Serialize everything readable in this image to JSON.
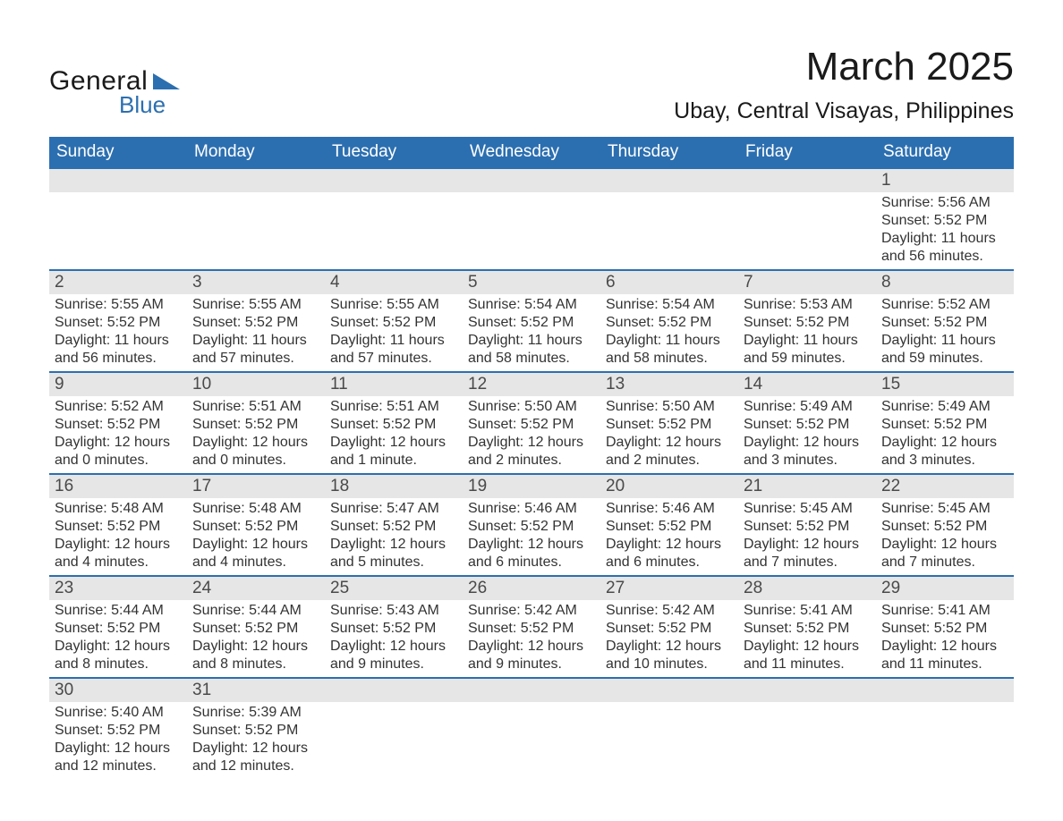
{
  "logo": {
    "text_general": "General",
    "text_blue": "Blue",
    "triangle_color": "#2c6fb0"
  },
  "title": {
    "month": "March 2025",
    "location": "Ubay, Central Visayas, Philippines"
  },
  "colors": {
    "header_bg": "#2c6fb0",
    "header_text": "#ffffff",
    "daynum_bg": "#e6e6e6",
    "divider": "#2c6fb0",
    "body_text": "#333333",
    "page_bg": "#ffffff"
  },
  "weekdays": [
    "Sunday",
    "Monday",
    "Tuesday",
    "Wednesday",
    "Thursday",
    "Friday",
    "Saturday"
  ],
  "weeks": [
    [
      null,
      null,
      null,
      null,
      null,
      null,
      {
        "day": "1",
        "sunrise": "Sunrise: 5:56 AM",
        "sunset": "Sunset: 5:52 PM",
        "daylight1": "Daylight: 11 hours",
        "daylight2": "and 56 minutes."
      }
    ],
    [
      {
        "day": "2",
        "sunrise": "Sunrise: 5:55 AM",
        "sunset": "Sunset: 5:52 PM",
        "daylight1": "Daylight: 11 hours",
        "daylight2": "and 56 minutes."
      },
      {
        "day": "3",
        "sunrise": "Sunrise: 5:55 AM",
        "sunset": "Sunset: 5:52 PM",
        "daylight1": "Daylight: 11 hours",
        "daylight2": "and 57 minutes."
      },
      {
        "day": "4",
        "sunrise": "Sunrise: 5:55 AM",
        "sunset": "Sunset: 5:52 PM",
        "daylight1": "Daylight: 11 hours",
        "daylight2": "and 57 minutes."
      },
      {
        "day": "5",
        "sunrise": "Sunrise: 5:54 AM",
        "sunset": "Sunset: 5:52 PM",
        "daylight1": "Daylight: 11 hours",
        "daylight2": "and 58 minutes."
      },
      {
        "day": "6",
        "sunrise": "Sunrise: 5:54 AM",
        "sunset": "Sunset: 5:52 PM",
        "daylight1": "Daylight: 11 hours",
        "daylight2": "and 58 minutes."
      },
      {
        "day": "7",
        "sunrise": "Sunrise: 5:53 AM",
        "sunset": "Sunset: 5:52 PM",
        "daylight1": "Daylight: 11 hours",
        "daylight2": "and 59 minutes."
      },
      {
        "day": "8",
        "sunrise": "Sunrise: 5:52 AM",
        "sunset": "Sunset: 5:52 PM",
        "daylight1": "Daylight: 11 hours",
        "daylight2": "and 59 minutes."
      }
    ],
    [
      {
        "day": "9",
        "sunrise": "Sunrise: 5:52 AM",
        "sunset": "Sunset: 5:52 PM",
        "daylight1": "Daylight: 12 hours",
        "daylight2": "and 0 minutes."
      },
      {
        "day": "10",
        "sunrise": "Sunrise: 5:51 AM",
        "sunset": "Sunset: 5:52 PM",
        "daylight1": "Daylight: 12 hours",
        "daylight2": "and 0 minutes."
      },
      {
        "day": "11",
        "sunrise": "Sunrise: 5:51 AM",
        "sunset": "Sunset: 5:52 PM",
        "daylight1": "Daylight: 12 hours",
        "daylight2": "and 1 minute."
      },
      {
        "day": "12",
        "sunrise": "Sunrise: 5:50 AM",
        "sunset": "Sunset: 5:52 PM",
        "daylight1": "Daylight: 12 hours",
        "daylight2": "and 2 minutes."
      },
      {
        "day": "13",
        "sunrise": "Sunrise: 5:50 AM",
        "sunset": "Sunset: 5:52 PM",
        "daylight1": "Daylight: 12 hours",
        "daylight2": "and 2 minutes."
      },
      {
        "day": "14",
        "sunrise": "Sunrise: 5:49 AM",
        "sunset": "Sunset: 5:52 PM",
        "daylight1": "Daylight: 12 hours",
        "daylight2": "and 3 minutes."
      },
      {
        "day": "15",
        "sunrise": "Sunrise: 5:49 AM",
        "sunset": "Sunset: 5:52 PM",
        "daylight1": "Daylight: 12 hours",
        "daylight2": "and 3 minutes."
      }
    ],
    [
      {
        "day": "16",
        "sunrise": "Sunrise: 5:48 AM",
        "sunset": "Sunset: 5:52 PM",
        "daylight1": "Daylight: 12 hours",
        "daylight2": "and 4 minutes."
      },
      {
        "day": "17",
        "sunrise": "Sunrise: 5:48 AM",
        "sunset": "Sunset: 5:52 PM",
        "daylight1": "Daylight: 12 hours",
        "daylight2": "and 4 minutes."
      },
      {
        "day": "18",
        "sunrise": "Sunrise: 5:47 AM",
        "sunset": "Sunset: 5:52 PM",
        "daylight1": "Daylight: 12 hours",
        "daylight2": "and 5 minutes."
      },
      {
        "day": "19",
        "sunrise": "Sunrise: 5:46 AM",
        "sunset": "Sunset: 5:52 PM",
        "daylight1": "Daylight: 12 hours",
        "daylight2": "and 6 minutes."
      },
      {
        "day": "20",
        "sunrise": "Sunrise: 5:46 AM",
        "sunset": "Sunset: 5:52 PM",
        "daylight1": "Daylight: 12 hours",
        "daylight2": "and 6 minutes."
      },
      {
        "day": "21",
        "sunrise": "Sunrise: 5:45 AM",
        "sunset": "Sunset: 5:52 PM",
        "daylight1": "Daylight: 12 hours",
        "daylight2": "and 7 minutes."
      },
      {
        "day": "22",
        "sunrise": "Sunrise: 5:45 AM",
        "sunset": "Sunset: 5:52 PM",
        "daylight1": "Daylight: 12 hours",
        "daylight2": "and 7 minutes."
      }
    ],
    [
      {
        "day": "23",
        "sunrise": "Sunrise: 5:44 AM",
        "sunset": "Sunset: 5:52 PM",
        "daylight1": "Daylight: 12 hours",
        "daylight2": "and 8 minutes."
      },
      {
        "day": "24",
        "sunrise": "Sunrise: 5:44 AM",
        "sunset": "Sunset: 5:52 PM",
        "daylight1": "Daylight: 12 hours",
        "daylight2": "and 8 minutes."
      },
      {
        "day": "25",
        "sunrise": "Sunrise: 5:43 AM",
        "sunset": "Sunset: 5:52 PM",
        "daylight1": "Daylight: 12 hours",
        "daylight2": "and 9 minutes."
      },
      {
        "day": "26",
        "sunrise": "Sunrise: 5:42 AM",
        "sunset": "Sunset: 5:52 PM",
        "daylight1": "Daylight: 12 hours",
        "daylight2": "and 9 minutes."
      },
      {
        "day": "27",
        "sunrise": "Sunrise: 5:42 AM",
        "sunset": "Sunset: 5:52 PM",
        "daylight1": "Daylight: 12 hours",
        "daylight2": "and 10 minutes."
      },
      {
        "day": "28",
        "sunrise": "Sunrise: 5:41 AM",
        "sunset": "Sunset: 5:52 PM",
        "daylight1": "Daylight: 12 hours",
        "daylight2": "and 11 minutes."
      },
      {
        "day": "29",
        "sunrise": "Sunrise: 5:41 AM",
        "sunset": "Sunset: 5:52 PM",
        "daylight1": "Daylight: 12 hours",
        "daylight2": "and 11 minutes."
      }
    ],
    [
      {
        "day": "30",
        "sunrise": "Sunrise: 5:40 AM",
        "sunset": "Sunset: 5:52 PM",
        "daylight1": "Daylight: 12 hours",
        "daylight2": "and 12 minutes."
      },
      {
        "day": "31",
        "sunrise": "Sunrise: 5:39 AM",
        "sunset": "Sunset: 5:52 PM",
        "daylight1": "Daylight: 12 hours",
        "daylight2": "and 12 minutes."
      },
      null,
      null,
      null,
      null,
      null
    ]
  ]
}
